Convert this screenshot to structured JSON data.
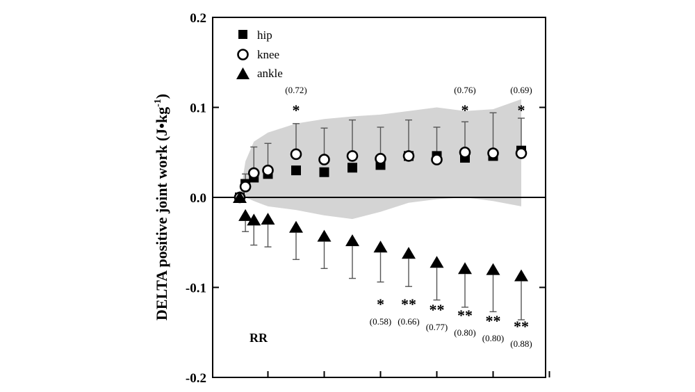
{
  "chart_data": {
    "type": "scatter",
    "title": "",
    "xlabel": "",
    "ylabel": "DELTA positive joint work (J•kg",
    "ylabel_superscript": "-1",
    "ylabel_close": ")",
    "ylim": [
      -0.2,
      0.2
    ],
    "yticks": [
      {
        "value": 0.2,
        "label": "0.2"
      },
      {
        "value": 0.1,
        "label": "0.1"
      },
      {
        "value": 0.0,
        "label": "0.0"
      },
      {
        "value": -0.1,
        "label": "-0.1"
      },
      {
        "value": -0.2,
        "label": "-0.2"
      }
    ],
    "xlim": [
      0,
      11
    ],
    "xticks": [
      1,
      3,
      5,
      7,
      9,
      11
    ],
    "x": [
      0,
      0.2,
      0.5,
      1,
      2,
      3,
      4,
      5,
      6,
      7,
      8,
      9,
      10
    ],
    "series": [
      {
        "name": "hip",
        "marker": "square",
        "values": [
          0.0,
          0.015,
          0.022,
          0.026,
          0.03,
          0.028,
          0.033,
          0.036,
          0.046,
          0.046,
          0.044,
          0.046,
          0.052
        ]
      },
      {
        "name": "knee",
        "marker": "circle",
        "values": [
          0.0,
          0.012,
          0.027,
          0.03,
          0.048,
          0.042,
          0.046,
          0.043,
          0.046,
          0.042,
          0.05,
          0.049,
          0.049
        ],
        "error_upper": [
          0.0,
          0.026,
          0.056,
          0.06,
          0.082,
          0.077,
          0.086,
          0.078,
          0.086,
          0.078,
          0.084,
          0.094,
          0.088
        ]
      },
      {
        "name": "ankle",
        "marker": "triangle",
        "values": [
          0.0,
          -0.02,
          -0.025,
          -0.024,
          -0.033,
          -0.043,
          -0.048,
          -0.055,
          -0.062,
          -0.072,
          -0.079,
          -0.08,
          -0.087
        ],
        "error_lower": [
          0.0,
          -0.038,
          -0.053,
          -0.055,
          -0.069,
          -0.079,
          -0.09,
          -0.094,
          -0.099,
          -0.114,
          -0.122,
          -0.127,
          -0.136
        ]
      }
    ],
    "shaded_band": {
      "description": "grey range",
      "upper": [
        0.0,
        0.04,
        0.062,
        0.072,
        0.082,
        0.087,
        0.09,
        0.092,
        0.096,
        0.1,
        0.096,
        0.098,
        0.109
      ],
      "lower": [
        0.0,
        0.0,
        -0.004,
        -0.01,
        -0.014,
        -0.02,
        -0.024,
        -0.016,
        -0.006,
        -0.002,
        0.0,
        -0.004,
        -0.01
      ]
    },
    "annotations_above": [
      {
        "x": 2,
        "stars": "*",
        "value": "(0.72)"
      },
      {
        "x": 8,
        "stars": "*",
        "value": "(0.76)"
      },
      {
        "x": 10,
        "stars": "*",
        "value": "(0.69)"
      }
    ],
    "annotations_below": [
      {
        "x": 5,
        "stars": "*",
        "value": "(0.58)"
      },
      {
        "x": 6,
        "stars": "**",
        "value": "(0.66)"
      },
      {
        "x": 7,
        "stars": "**",
        "value": "(0.77)"
      },
      {
        "x": 8,
        "stars": "**",
        "value": "(0.80)"
      },
      {
        "x": 9,
        "stars": "**",
        "value": "(0.80)"
      },
      {
        "x": 10,
        "stars": "**",
        "value": "(0.88)"
      }
    ],
    "panel_label": "RR",
    "legend": [
      {
        "name": "hip",
        "marker": "square"
      },
      {
        "name": "knee",
        "marker": "circle"
      },
      {
        "name": "ankle",
        "marker": "triangle"
      }
    ],
    "legend_position": "top-left"
  }
}
